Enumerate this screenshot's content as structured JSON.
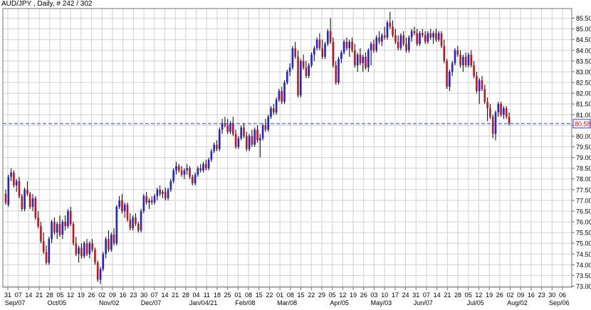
{
  "header": {
    "title": "AUD/JPY , Daily, # 242 / 302"
  },
  "colors": {
    "up": "#1f22d6",
    "down": "#c0161b",
    "grid": "#d0d0d0",
    "frame": "#707070",
    "price_line": "#2f3cf0",
    "price_tag_bg": "#ffffff",
    "price_tag_text": "#d0141a"
  },
  "chart_data": {
    "type": "candlestick",
    "title": "AUD/JPY , Daily, # 242 / 302",
    "xlabel": "",
    "ylabel": "",
    "ylim": [
      72.95,
      85.95
    ],
    "grid": true,
    "y_ticks": [
      "73.00",
      "73.50",
      "74.00",
      "74.50",
      "75.00",
      "75.50",
      "76.00",
      "76.50",
      "77.00",
      "77.50",
      "78.00",
      "78.50",
      "79.00",
      "79.50",
      "80.00",
      "80.50",
      "81.00",
      "81.50",
      "82.00",
      "82.50",
      "83.00",
      "83.50",
      "84.00",
      "84.50",
      "85.00",
      "85.50"
    ],
    "x_tick_days": [
      "31",
      "07",
      "14",
      "21",
      "28",
      "05",
      "12",
      "19",
      "26",
      "02",
      "09",
      "16",
      "23",
      "30",
      "07",
      "14",
      "21",
      "28",
      "04",
      "11",
      "18",
      "25",
      "01",
      "08",
      "15",
      "22",
      "01",
      "08",
      "15",
      "22",
      "29",
      "05",
      "12",
      "19",
      "26",
      "03",
      "10",
      "17",
      "24",
      "31",
      "07",
      "14",
      "21",
      "28",
      "05",
      "12",
      "19",
      "26",
      "02",
      "09",
      "16",
      "23",
      "30",
      "06"
    ],
    "x_month_labels": [
      "Sep/07",
      "Oct/05",
      "Nov/02",
      "Dec/07",
      "Jan/04/21",
      "Feb/08",
      "Mar/08",
      "Apr/05",
      "May/03",
      "Jun/07",
      "Jul/05",
      "Aug/02",
      "Sep/06"
    ],
    "current_price": "80.58",
    "series": [
      {
        "values": [
          [
            77.3,
            77.5,
            76.8,
            76.9
          ],
          [
            76.8,
            78.2,
            76.7,
            78.1
          ],
          [
            78.1,
            78.5,
            77.9,
            78.3
          ],
          [
            78.3,
            78.4,
            77.6,
            77.7
          ],
          [
            77.7,
            78.0,
            77.4,
            77.9
          ],
          [
            77.9,
            78.1,
            77.1,
            77.2
          ],
          [
            77.2,
            77.3,
            76.5,
            76.6
          ],
          [
            76.6,
            77.6,
            76.5,
            77.5
          ],
          [
            77.5,
            77.9,
            77.2,
            77.3
          ],
          [
            77.3,
            77.4,
            76.6,
            76.7
          ],
          [
            76.7,
            77.3,
            76.5,
            77.1
          ],
          [
            77.1,
            77.2,
            76.1,
            76.2
          ],
          [
            76.2,
            76.5,
            75.7,
            75.8
          ],
          [
            75.8,
            76.0,
            75.0,
            75.1
          ],
          [
            75.1,
            75.5,
            74.5,
            74.6
          ],
          [
            74.6,
            74.9,
            74.0,
            74.1
          ],
          [
            74.1,
            75.3,
            74.0,
            75.2
          ],
          [
            75.2,
            76.1,
            75.0,
            76.0
          ],
          [
            76.0,
            76.2,
            75.4,
            75.5
          ],
          [
            75.5,
            76.0,
            75.2,
            75.9
          ],
          [
            75.9,
            76.3,
            75.3,
            75.4
          ],
          [
            75.4,
            76.1,
            75.2,
            76.0
          ],
          [
            76.0,
            76.3,
            75.6,
            75.8
          ],
          [
            75.8,
            76.6,
            75.7,
            76.5
          ],
          [
            76.5,
            76.7,
            75.8,
            75.9
          ],
          [
            75.9,
            76.0,
            74.9,
            75.0
          ],
          [
            75.0,
            75.3,
            74.4,
            74.5
          ],
          [
            74.5,
            74.9,
            74.1,
            74.8
          ],
          [
            74.8,
            75.0,
            74.3,
            74.4
          ],
          [
            74.4,
            75.1,
            74.3,
            75.0
          ],
          [
            75.0,
            75.2,
            74.4,
            74.5
          ],
          [
            74.5,
            75.1,
            74.3,
            75.0
          ],
          [
            75.0,
            75.2,
            74.6,
            74.7
          ],
          [
            74.7,
            74.8,
            74.0,
            74.1
          ],
          [
            74.1,
            74.2,
            73.2,
            73.3
          ],
          [
            73.3,
            73.9,
            73.1,
            73.8
          ],
          [
            73.8,
            74.6,
            73.7,
            74.5
          ],
          [
            74.5,
            75.3,
            74.3,
            75.2
          ],
          [
            75.2,
            75.6,
            74.6,
            74.7
          ],
          [
            74.7,
            75.5,
            74.6,
            75.4
          ],
          [
            75.4,
            75.7,
            74.9,
            75.0
          ],
          [
            75.0,
            76.8,
            74.9,
            76.7
          ],
          [
            76.7,
            77.2,
            76.6,
            77.0
          ],
          [
            77.0,
            77.3,
            76.4,
            76.5
          ],
          [
            76.5,
            76.9,
            76.2,
            76.8
          ],
          [
            76.8,
            76.9,
            76.0,
            76.1
          ],
          [
            76.1,
            76.4,
            75.6,
            75.7
          ],
          [
            75.7,
            76.3,
            75.6,
            76.2
          ],
          [
            76.2,
            76.4,
            75.8,
            75.9
          ],
          [
            75.9,
            76.0,
            75.5,
            75.6
          ],
          [
            75.6,
            76.6,
            75.5,
            76.5
          ],
          [
            76.5,
            77.3,
            76.4,
            77.2
          ],
          [
            77.2,
            77.4,
            76.8,
            76.9
          ],
          [
            76.9,
            77.1,
            76.6,
            77.0
          ],
          [
            77.0,
            77.2,
            76.8,
            76.9
          ],
          [
            76.9,
            77.3,
            76.8,
            77.2
          ],
          [
            77.2,
            77.6,
            77.0,
            77.5
          ],
          [
            77.5,
            77.7,
            77.2,
            77.3
          ],
          [
            77.3,
            77.5,
            77.1,
            77.4
          ],
          [
            77.4,
            77.6,
            77.0,
            77.1
          ],
          [
            77.1,
            77.6,
            77.0,
            77.5
          ],
          [
            77.5,
            78.0,
            77.4,
            77.9
          ],
          [
            77.9,
            78.5,
            77.8,
            78.4
          ],
          [
            78.4,
            78.8,
            78.2,
            78.6
          ],
          [
            78.6,
            78.7,
            78.3,
            78.4
          ],
          [
            78.4,
            78.6,
            78.1,
            78.2
          ],
          [
            78.2,
            78.5,
            78.0,
            78.4
          ],
          [
            78.4,
            78.7,
            78.2,
            78.5
          ],
          [
            78.5,
            78.6,
            78.0,
            78.1
          ],
          [
            78.1,
            78.2,
            77.7,
            77.8
          ],
          [
            77.8,
            78.3,
            77.7,
            78.2
          ],
          [
            78.2,
            78.6,
            78.1,
            78.5
          ],
          [
            78.5,
            78.7,
            78.3,
            78.4
          ],
          [
            78.4,
            78.8,
            78.3,
            78.7
          ],
          [
            78.7,
            78.9,
            78.4,
            78.5
          ],
          [
            78.5,
            79.0,
            78.4,
            78.9
          ],
          [
            78.9,
            79.4,
            78.8,
            79.3
          ],
          [
            79.3,
            79.7,
            79.2,
            79.6
          ],
          [
            79.6,
            79.8,
            79.3,
            79.4
          ],
          [
            79.4,
            80.4,
            79.3,
            80.3
          ],
          [
            80.3,
            80.8,
            80.1,
            80.6
          ],
          [
            80.6,
            80.9,
            80.4,
            80.5
          ],
          [
            80.5,
            80.8,
            80.1,
            80.2
          ],
          [
            80.2,
            80.7,
            80.1,
            80.6
          ],
          [
            80.6,
            80.9,
            80.0,
            80.1
          ],
          [
            80.1,
            80.3,
            79.4,
            79.5
          ],
          [
            79.5,
            80.0,
            79.4,
            79.9
          ],
          [
            79.9,
            80.5,
            79.8,
            80.4
          ],
          [
            80.4,
            80.6,
            79.9,
            80.0
          ],
          [
            80.0,
            80.2,
            79.3,
            79.4
          ],
          [
            79.4,
            80.1,
            79.3,
            80.0
          ],
          [
            80.0,
            80.3,
            79.5,
            79.6
          ],
          [
            79.6,
            80.4,
            79.5,
            80.3
          ],
          [
            80.3,
            80.5,
            79.7,
            79.8
          ],
          [
            79.8,
            80.1,
            79.0,
            79.9
          ],
          [
            79.9,
            80.6,
            79.8,
            80.5
          ],
          [
            80.5,
            80.8,
            80.2,
            80.3
          ],
          [
            80.3,
            81.0,
            80.2,
            80.9
          ],
          [
            80.9,
            81.4,
            80.8,
            81.3
          ],
          [
            81.3,
            81.5,
            81.0,
            81.1
          ],
          [
            81.1,
            81.8,
            81.0,
            81.7
          ],
          [
            81.7,
            82.2,
            81.6,
            82.1
          ],
          [
            82.1,
            82.3,
            81.5,
            81.6
          ],
          [
            81.6,
            82.6,
            81.5,
            82.5
          ],
          [
            82.5,
            83.1,
            82.4,
            83.0
          ],
          [
            83.0,
            83.4,
            82.8,
            83.2
          ],
          [
            83.2,
            84.2,
            83.1,
            84.1
          ],
          [
            84.1,
            84.4,
            83.6,
            83.7
          ],
          [
            83.7,
            84.0,
            81.8,
            81.9
          ],
          [
            81.9,
            83.6,
            81.8,
            83.5
          ],
          [
            83.5,
            83.8,
            83.1,
            83.2
          ],
          [
            83.2,
            83.5,
            82.7,
            82.8
          ],
          [
            82.8,
            83.4,
            82.7,
            83.3
          ],
          [
            83.3,
            83.9,
            83.2,
            83.8
          ],
          [
            83.8,
            84.2,
            83.5,
            84.1
          ],
          [
            84.1,
            84.6,
            84.0,
            84.5
          ],
          [
            84.5,
            84.8,
            84.0,
            84.1
          ],
          [
            84.1,
            84.5,
            83.6,
            83.7
          ],
          [
            83.7,
            84.4,
            83.6,
            84.3
          ],
          [
            84.3,
            85.0,
            84.2,
            84.9
          ],
          [
            84.9,
            85.5,
            84.3,
            84.4
          ],
          [
            84.4,
            84.6,
            83.2,
            83.3
          ],
          [
            83.3,
            83.5,
            82.4,
            82.5
          ],
          [
            82.5,
            83.7,
            82.4,
            83.6
          ],
          [
            83.6,
            84.0,
            83.4,
            83.9
          ],
          [
            83.9,
            84.5,
            83.8,
            84.4
          ],
          [
            84.4,
            84.6,
            84.0,
            84.1
          ],
          [
            84.1,
            84.5,
            83.7,
            84.4
          ],
          [
            84.4,
            84.6,
            83.9,
            84.0
          ],
          [
            84.0,
            84.3,
            83.2,
            83.3
          ],
          [
            83.3,
            83.9,
            83.0,
            83.8
          ],
          [
            83.8,
            84.1,
            83.3,
            83.4
          ],
          [
            83.4,
            83.8,
            83.0,
            83.7
          ],
          [
            83.7,
            83.9,
            83.1,
            83.2
          ],
          [
            83.2,
            84.1,
            83.0,
            84.0
          ],
          [
            84.0,
            84.4,
            83.3,
            84.3
          ],
          [
            84.3,
            84.5,
            83.9,
            84.0
          ],
          [
            84.0,
            84.7,
            83.9,
            84.6
          ],
          [
            84.6,
            84.9,
            84.3,
            84.4
          ],
          [
            84.4,
            84.8,
            84.2,
            84.7
          ],
          [
            84.7,
            85.1,
            84.5,
            84.6
          ],
          [
            84.6,
            85.4,
            84.5,
            85.3
          ],
          [
            85.3,
            85.8,
            85.0,
            85.1
          ],
          [
            85.1,
            85.4,
            84.6,
            84.7
          ],
          [
            84.7,
            85.0,
            84.3,
            84.4
          ],
          [
            84.4,
            84.7,
            84.0,
            84.1
          ],
          [
            84.1,
            84.8,
            84.0,
            84.7
          ],
          [
            84.7,
            84.9,
            84.2,
            84.3
          ],
          [
            84.3,
            84.6,
            83.9,
            84.0
          ],
          [
            84.0,
            84.7,
            83.9,
            84.6
          ],
          [
            84.6,
            85.0,
            84.4,
            84.9
          ],
          [
            84.9,
            85.1,
            84.7,
            84.8
          ],
          [
            84.8,
            85.0,
            84.2,
            84.3
          ],
          [
            84.3,
            84.9,
            84.2,
            84.8
          ],
          [
            84.8,
            85.0,
            84.6,
            84.7
          ],
          [
            84.7,
            84.9,
            84.3,
            84.4
          ],
          [
            84.4,
            84.9,
            84.3,
            84.8
          ],
          [
            84.8,
            85.0,
            84.5,
            84.6
          ],
          [
            84.6,
            84.9,
            84.3,
            84.8
          ],
          [
            84.8,
            85.0,
            84.4,
            84.5
          ],
          [
            84.5,
            84.9,
            84.4,
            84.8
          ],
          [
            84.8,
            84.9,
            84.1,
            84.2
          ],
          [
            84.2,
            84.5,
            83.4,
            83.5
          ],
          [
            83.5,
            83.6,
            82.2,
            82.3
          ],
          [
            82.3,
            83.1,
            82.1,
            83.0
          ],
          [
            83.0,
            83.5,
            82.8,
            83.4
          ],
          [
            83.4,
            84.1,
            83.3,
            84.0
          ],
          [
            84.0,
            84.2,
            83.7,
            83.8
          ],
          [
            83.8,
            84.0,
            83.2,
            83.3
          ],
          [
            83.3,
            83.8,
            83.0,
            83.7
          ],
          [
            83.7,
            83.9,
            83.2,
            83.3
          ],
          [
            83.3,
            83.9,
            83.2,
            83.8
          ],
          [
            83.8,
            84.0,
            83.2,
            83.3
          ],
          [
            83.3,
            83.5,
            82.7,
            82.8
          ],
          [
            82.8,
            83.0,
            82.0,
            82.1
          ],
          [
            82.1,
            82.7,
            81.5,
            82.6
          ],
          [
            82.6,
            82.8,
            82.1,
            82.2
          ],
          [
            82.2,
            82.4,
            81.5,
            81.6
          ],
          [
            81.6,
            81.8,
            80.7,
            81.3
          ],
          [
            81.3,
            81.5,
            80.8,
            80.9
          ],
          [
            80.9,
            81.0,
            79.9,
            80.1
          ],
          [
            80.1,
            81.2,
            79.8,
            81.1
          ],
          [
            81.1,
            81.6,
            80.9,
            81.5
          ],
          [
            81.5,
            81.6,
            80.9,
            81.0
          ],
          [
            81.0,
            81.4,
            80.8,
            81.3
          ],
          [
            81.3,
            81.4,
            80.8,
            80.9
          ],
          [
            80.9,
            81.1,
            80.5,
            80.6
          ]
        ]
      }
    ]
  }
}
